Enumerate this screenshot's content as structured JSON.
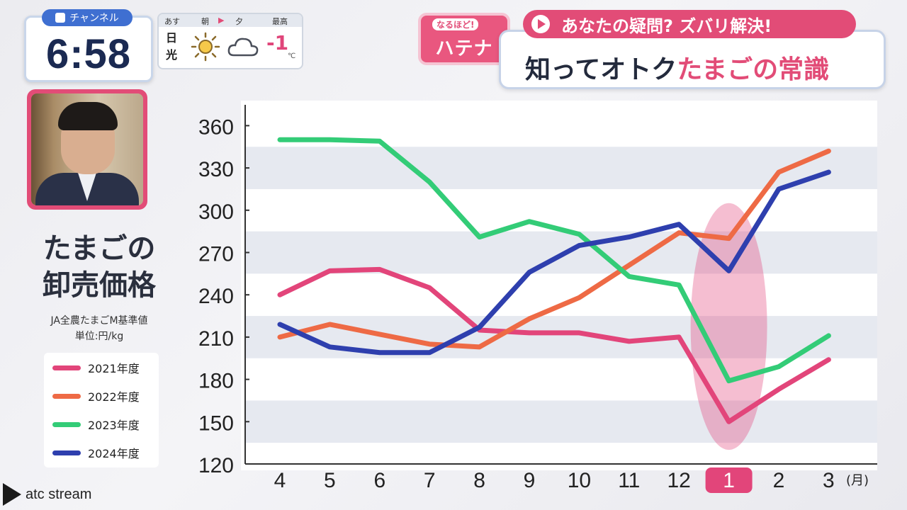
{
  "channel": {
    "label": "チャンネル"
  },
  "clock": {
    "time": "6:58"
  },
  "weather": {
    "tabs": [
      "あす",
      "朝",
      "夕",
      "最高"
    ],
    "city": "日光",
    "temp": "-1",
    "unit": "℃",
    "icons": [
      "sun-icon",
      "cloud-icon"
    ]
  },
  "segment": {
    "badge_small": "なるほど!",
    "badge_big": "ハテナ",
    "subtitle": "あなたの疑問? ズバリ解決!",
    "headline_plain": "知ってオトク",
    "headline_accent": "たまごの常識"
  },
  "panel": {
    "title_line1": "たまごの",
    "title_line2": "卸売価格",
    "source": "JA全農たまごM基準値",
    "unit": "単位:円/kg"
  },
  "chart_data": {
    "type": "line",
    "x": [
      "4",
      "5",
      "6",
      "7",
      "8",
      "9",
      "10",
      "11",
      "12",
      "1",
      "2",
      "3"
    ],
    "x_unit": "(月)",
    "highlight_x": "1",
    "ylim": [
      120,
      370
    ],
    "yticks": [
      120,
      150,
      180,
      210,
      240,
      270,
      300,
      330,
      360
    ],
    "grid": "horizontal bands",
    "legend_position": "left",
    "series": [
      {
        "name": "2021年度",
        "color": "#e2457a",
        "values": [
          240,
          257,
          258,
          245,
          215,
          213,
          213,
          207,
          210,
          150,
          173,
          194
        ]
      },
      {
        "name": "2022年度",
        "color": "#ee6a45",
        "values": [
          210,
          219,
          212,
          205,
          203,
          223,
          238,
          261,
          284,
          280,
          327,
          342
        ]
      },
      {
        "name": "2023年度",
        "color": "#33cc77",
        "values": [
          350,
          350,
          349,
          320,
          281,
          292,
          283,
          253,
          247,
          179,
          189,
          211
        ]
      },
      {
        "name": "2024年度",
        "color": "#2e3fae",
        "values": [
          219,
          203,
          199,
          199,
          217,
          256,
          275,
          281,
          290,
          257,
          315,
          327
        ]
      }
    ]
  },
  "watermark": {
    "text": "atc stream"
  }
}
